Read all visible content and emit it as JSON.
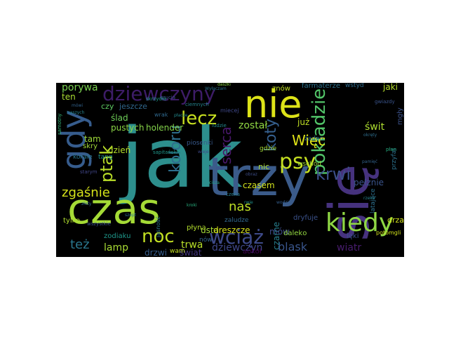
{
  "wordcloud": {
    "background": "#000000",
    "words": [
      {
        "text": "jak",
        "color": "#2d8f8d"
      },
      {
        "text": "się",
        "color": "#46327e"
      },
      {
        "text": "trzy",
        "color": "#3b5b8a"
      },
      {
        "text": "czas",
        "color": "#a5db36"
      },
      {
        "text": "nie",
        "color": "#dde318"
      },
      {
        "text": "gdy",
        "color": "#365c8d"
      },
      {
        "text": "kiedy",
        "color": "#8fd744"
      },
      {
        "text": "dziewczyny",
        "color": "#3d1c67"
      },
      {
        "text": "psy",
        "color": "#c6e021"
      },
      {
        "text": "lecz",
        "color": "#c8e020"
      },
      {
        "text": "noc",
        "color": "#c2df23"
      },
      {
        "text": "wciąż",
        "color": "#3e4a89"
      },
      {
        "text": "pokładzie",
        "color": "#52c569"
      },
      {
        "text": "krwi",
        "color": "#3c4f8a"
      },
      {
        "text": "koloru",
        "color": "#2e6e8e"
      },
      {
        "text": "ptak",
        "color": "#bade28"
      },
      {
        "text": "serca",
        "color": "#48186a"
      },
      {
        "text": "koty",
        "color": "#355f8d"
      },
      {
        "text": "Więc",
        "color": "#e0e317"
      },
      {
        "text": "zgaśnie",
        "color": "#d5e21a"
      },
      {
        "text": "nas",
        "color": "#bddf26"
      },
      {
        "text": "też",
        "color": "#2a778e"
      },
      {
        "text": "blask",
        "color": "#39558c"
      },
      {
        "text": "porywa",
        "color": "#7ad151"
      },
      {
        "text": "czarne",
        "color": "#277f8e"
      },
      {
        "text": "wiatr",
        "color": "#481c6e"
      },
      {
        "text": "lamp",
        "color": "#a8db34"
      },
      {
        "text": "trwa",
        "color": "#b8de29"
      },
      {
        "text": "został",
        "color": "#90d743"
      },
      {
        "text": "czasem",
        "color": "#d0e11c"
      },
      {
        "text": "dziewczyn",
        "color": "#3f4788"
      },
      {
        "text": "świat",
        "color": "#453781"
      },
      {
        "text": "usta",
        "color": "#a2da37"
      },
      {
        "text": "dreszcze",
        "color": "#d8e219"
      },
      {
        "text": "dzień",
        "color": "#b5de2b"
      },
      {
        "text": "ślad",
        "color": "#6ece58"
      },
      {
        "text": "pustych",
        "color": "#8bd646"
      },
      {
        "text": "holender",
        "color": "#84d44b"
      },
      {
        "text": "tam",
        "color": "#9fda3a"
      },
      {
        "text": "jeszcze",
        "color": "#31688e"
      },
      {
        "text": "czy",
        "color": "#5ec962"
      },
      {
        "text": "już",
        "color": "#c0df25"
      },
      {
        "text": "świt",
        "color": "#addc30"
      },
      {
        "text": "mów",
        "color": "#3e4c8a"
      },
      {
        "text": "drzwi",
        "color": "#365d8d"
      },
      {
        "text": "tylko",
        "color": "#b0dd2f"
      },
      {
        "text": "płyną",
        "color": "#b2dd2d"
      },
      {
        "text": "jaki",
        "color": "#b5de2b"
      },
      {
        "text": "znów",
        "color": "#c0df25"
      },
      {
        "text": "ten",
        "color": "#aadc32"
      },
      {
        "text": "dryfuje",
        "color": "#3b528b"
      },
      {
        "text": "pełznie",
        "color": "#3a548c"
      },
      {
        "text": "nic",
        "color": "#addc30"
      },
      {
        "text": "gdzie",
        "color": "#a5db36"
      },
      {
        "text": "dalekо",
        "color": "#93d741"
      },
      {
        "text": "wschód",
        "color": "#9bd93c"
      },
      {
        "text": "zaludze",
        "color": "#31688e"
      },
      {
        "text": "farmaterze",
        "color": "#2c728e"
      },
      {
        "text": "latające",
        "color": "#2d708e"
      },
      {
        "text": "zodiaku",
        "color": "#1f988b"
      },
      {
        "text": "tang",
        "color": "#20928c"
      },
      {
        "text": "skry",
        "color": "#a0da39"
      },
      {
        "text": "korale",
        "color": "#2a788e"
      },
      {
        "text": "wam",
        "color": "#c5e021"
      },
      {
        "text": "aokół",
        "color": "#440154"
      },
      {
        "text": "drza",
        "color": "#d2e21b"
      },
      {
        "text": "mgły",
        "color": "#3b528b"
      },
      {
        "text": "przyfal",
        "color": "#2c728e"
      },
      {
        "text": "żaden",
        "color": "#2e6f8e"
      },
      {
        "text": "potomgli",
        "color": "#d2e21b"
      },
      {
        "text": "miecej",
        "color": "#3f4889"
      },
      {
        "text": "ludzie",
        "color": "#23898e"
      },
      {
        "text": "piosenki",
        "color": "#38598c"
      },
      {
        "text": "wrak",
        "color": "#30698e"
      },
      {
        "text": "nów",
        "color": "#32648e"
      },
      {
        "text": "jasność",
        "color": "#2a768e"
      },
      {
        "text": "dal",
        "color": "#3b518b"
      },
      {
        "text": "wstyd",
        "color": "#2f6c8e"
      },
      {
        "text": "wszystkie",
        "color": "#3b528b"
      },
      {
        "text": "samotny",
        "color": "#35b779"
      },
      {
        "text": "starym",
        "color": "#404688"
      },
      {
        "text": "mówi",
        "color": "#33638d"
      },
      {
        "text": "płan",
        "color": "#27ad81"
      },
      {
        "text": "czeka",
        "color": "#287c8e"
      },
      {
        "text": "sapitańskie",
        "color": "#1f978b"
      },
      {
        "text": "lęki",
        "color": "#3b518b"
      },
      {
        "text": "Wyłączam",
        "color": "#2b748e"
      },
      {
        "text": "naszych",
        "color": "#25838e"
      },
      {
        "text": "daszki",
        "color": "#8bd646"
      },
      {
        "text": "rwie",
        "color": "#21918c"
      },
      {
        "text": "kroki",
        "color": "#29af7f"
      },
      {
        "text": "wieje",
        "color": "#3e4989"
      },
      {
        "text": "czucia",
        "color": "#3c4f8a"
      },
      {
        "text": "okręty",
        "color": "#2e6e8e"
      },
      {
        "text": "ciemnych",
        "color": "#25848e"
      },
      {
        "text": "skrzydła",
        "color": "#1e9c89"
      },
      {
        "text": "płacze",
        "color": "#238a8d"
      },
      {
        "text": "wodzie",
        "color": "#355e8d"
      },
      {
        "text": "gwiazdy",
        "color": "#3a548c"
      },
      {
        "text": "rzeka",
        "color": "#26828e"
      },
      {
        "text": "złoty",
        "color": "#31678e"
      },
      {
        "text": "obraz",
        "color": "#3d4e8a"
      },
      {
        "text": "szept",
        "color": "#2c718e"
      },
      {
        "text": "cisza",
        "color": "#20a486"
      },
      {
        "text": "pamięć",
        "color": "#33638d"
      }
    ]
  }
}
